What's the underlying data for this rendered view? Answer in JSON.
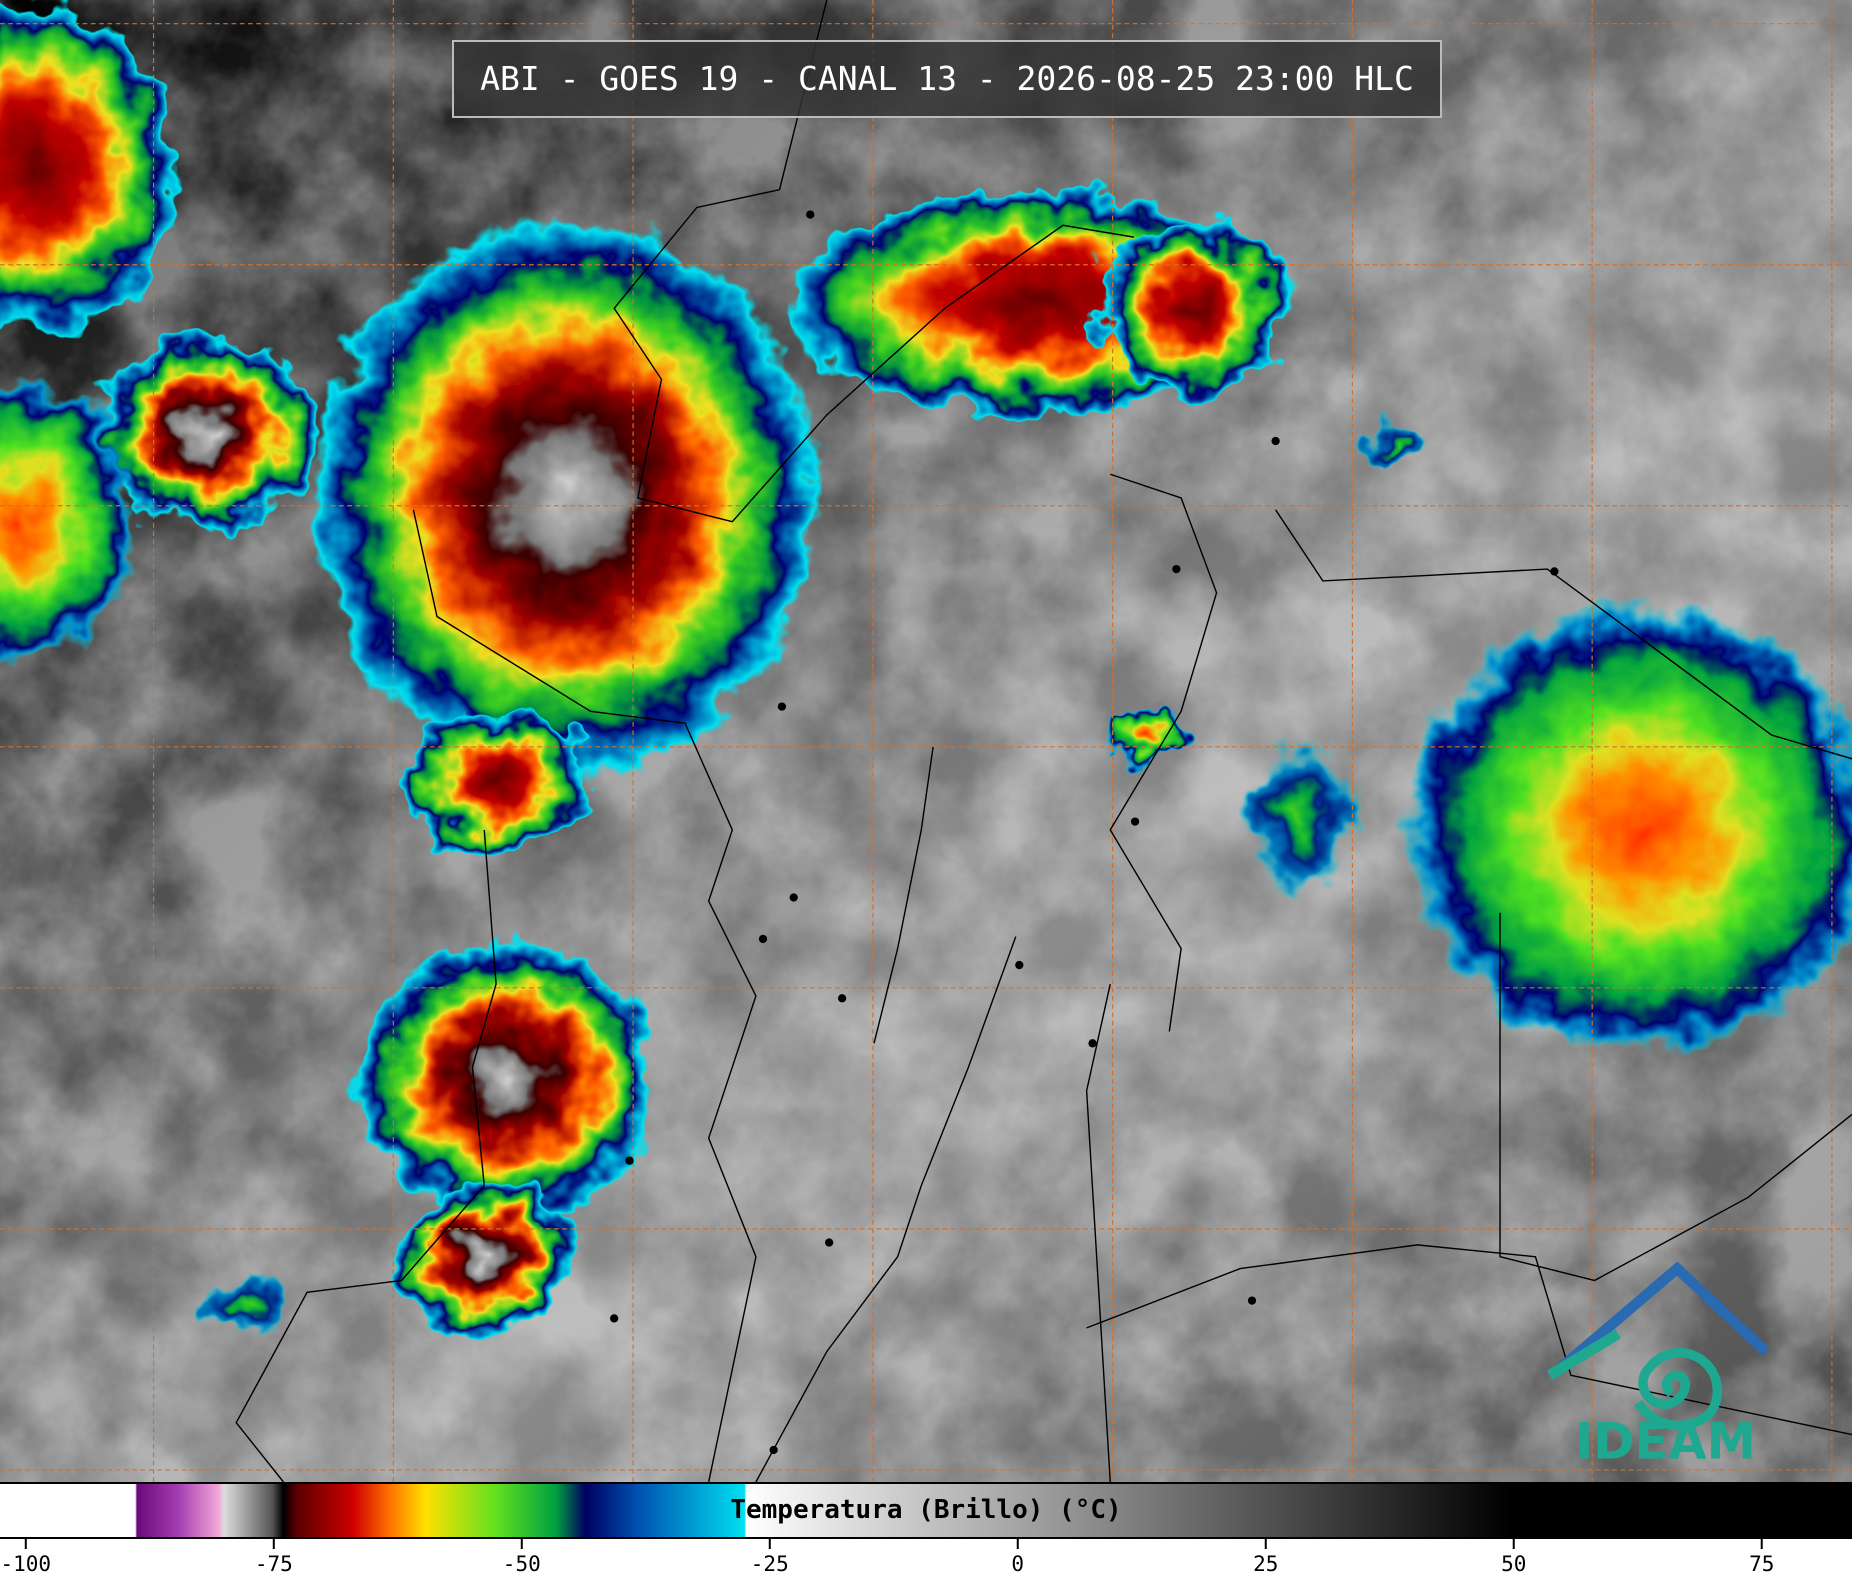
{
  "title": "ABI - GOES 19 - CANAL 13 - 2026-08-25 23:00 HLC",
  "colorbar": {
    "label": "Temperatura (Brillo) (°C)",
    "xlim": [
      -102.6,
      84.1
    ],
    "ticks": [
      -100,
      -75,
      -50,
      -25,
      0,
      25,
      50,
      75
    ]
  },
  "logo": {
    "text": "IDEAM"
  }
}
